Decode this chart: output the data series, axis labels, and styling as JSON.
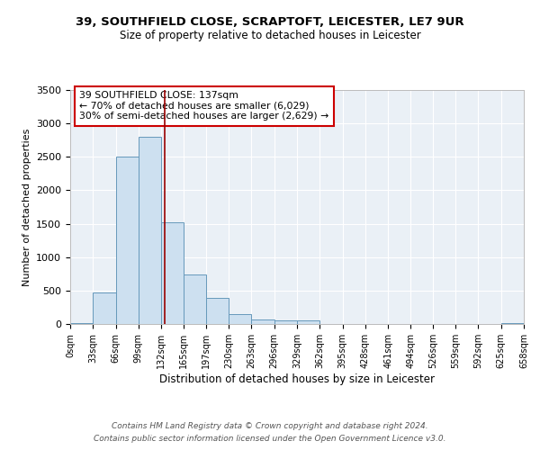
{
  "title": "39, SOUTHFIELD CLOSE, SCRAPTOFT, LEICESTER, LE7 9UR",
  "subtitle": "Size of property relative to detached houses in Leicester",
  "xlabel": "Distribution of detached houses by size in Leicester",
  "ylabel": "Number of detached properties",
  "bin_edges": [
    0,
    33,
    66,
    99,
    132,
    165,
    197,
    230,
    263,
    296,
    329,
    362,
    395,
    428,
    461,
    494,
    526,
    559,
    592,
    625,
    658
  ],
  "bar_values": [
    20,
    470,
    2500,
    2800,
    1520,
    740,
    390,
    150,
    65,
    55,
    50,
    0,
    0,
    0,
    0,
    0,
    0,
    0,
    0,
    15
  ],
  "bar_color": "#cde0f0",
  "bar_edge_color": "#6699bb",
  "property_size": 137,
  "vline_color": "#990000",
  "annotation_text": "39 SOUTHFIELD CLOSE: 137sqm\n← 70% of detached houses are smaller (6,029)\n30% of semi-detached houses are larger (2,629) →",
  "annotation_box_color": "#ffffff",
  "annotation_box_edge_color": "#cc0000",
  "ylim": [
    0,
    3500
  ],
  "yticks": [
    0,
    500,
    1000,
    1500,
    2000,
    2500,
    3000,
    3500
  ],
  "tick_labels": [
    "0sqm",
    "33sqm",
    "66sqm",
    "99sqm",
    "132sqm",
    "165sqm",
    "197sqm",
    "230sqm",
    "263sqm",
    "296sqm",
    "329sqm",
    "362sqm",
    "395sqm",
    "428sqm",
    "461sqm",
    "494sqm",
    "526sqm",
    "559sqm",
    "592sqm",
    "625sqm",
    "658sqm"
  ],
  "footer_line1": "Contains HM Land Registry data © Crown copyright and database right 2024.",
  "footer_line2": "Contains public sector information licensed under the Open Government Licence v3.0.",
  "bg_color": "#eaf0f6",
  "grid_color": "#ffffff",
  "title_fontsize": 9.5,
  "subtitle_fontsize": 8.5,
  "ylabel_fontsize": 8,
  "xlabel_fontsize": 8.5
}
